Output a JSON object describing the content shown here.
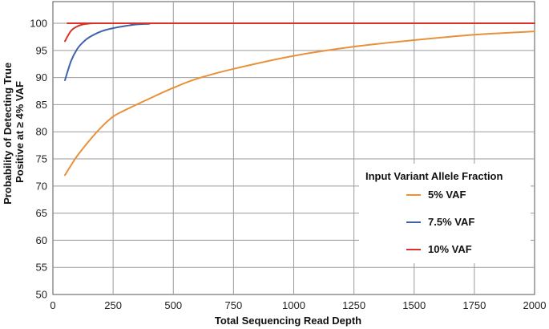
{
  "chart_data": {
    "type": "line",
    "title": "",
    "xlabel": "Total Sequencing Read Depth",
    "ylabel_lines": [
      "Probability of Detecting True",
      "Positive at ≥ 4% VAF"
    ],
    "xlim": [
      0,
      2000
    ],
    "ylim": [
      50,
      104
    ],
    "x_ticks": [
      0,
      250,
      500,
      750,
      1000,
      1250,
      1500,
      1750,
      2000
    ],
    "x_tick_labels": [
      "0",
      "250",
      "500",
      "750",
      "1000",
      "1250",
      "1500",
      "1750",
      "2000"
    ],
    "y_ticks": [
      50,
      55,
      60,
      65,
      70,
      75,
      80,
      85,
      90,
      95,
      100
    ],
    "y_tick_labels": [
      "50",
      "55",
      "60",
      "65",
      "70",
      "75",
      "80",
      "85",
      "90",
      "95",
      "100"
    ],
    "grid": true,
    "legend": {
      "title": "Input Variant Allele Fraction",
      "placement": "right"
    },
    "series": [
      {
        "name": "5% VAF",
        "color": "#e8913a",
        "x": [
          50,
          75,
          100,
          150,
          200,
          250,
          300,
          400,
          500,
          600,
          750,
          1000,
          1250,
          1500,
          1750,
          2000
        ],
        "y": [
          72.0,
          73.8,
          75.5,
          78.3,
          80.8,
          82.8,
          84.0,
          86.1,
          88.1,
          89.8,
          91.6,
          94.0,
          95.7,
          96.9,
          97.9,
          98.5
        ]
      },
      {
        "name": "7.5% VAF",
        "color": "#3f63a8",
        "x": [
          50,
          75,
          100,
          125,
          150,
          200,
          250,
          300,
          350,
          400,
          450,
          2000
        ],
        "y": [
          89.5,
          93.0,
          95.2,
          96.5,
          97.4,
          98.5,
          99.1,
          99.5,
          99.8,
          99.9,
          100.0,
          100.0
        ]
      },
      {
        "name": "10% VAF",
        "color": "#d9322b",
        "x": [
          50,
          75,
          100,
          125,
          150,
          175,
          200,
          2000
        ],
        "y": [
          96.7,
          98.6,
          99.4,
          99.8,
          99.95,
          100.0,
          100.0,
          100.0
        ]
      }
    ]
  }
}
